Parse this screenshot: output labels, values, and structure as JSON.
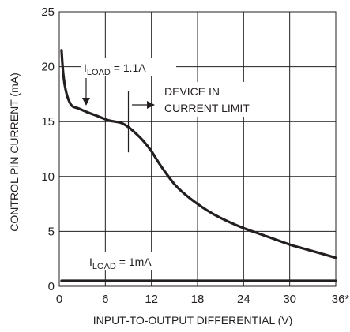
{
  "chart_data": {
    "type": "line",
    "title": "",
    "xlabel": "INPUT-TO-OUTPUT DIFFERENTIAL (V)",
    "ylabel": "CONTROL PIN CURRENT (mA)",
    "xlim": [
      0,
      36
    ],
    "ylim": [
      0,
      25
    ],
    "x_ticks": [
      0,
      6,
      12,
      18,
      24,
      30,
      36
    ],
    "x_tick_labels": [
      "0",
      "6",
      "12",
      "18",
      "24",
      "30",
      "36*"
    ],
    "y_ticks": [
      0,
      5,
      10,
      15,
      20,
      25
    ],
    "y_tick_labels": [
      "0",
      "5",
      "10",
      "15",
      "20",
      "25"
    ],
    "grid": true,
    "line_color": "#231f20",
    "series": [
      {
        "name": "ILOAD = 1.1A",
        "x": [
          0.3,
          0.5,
          0.8,
          1.2,
          1.7,
          2.5,
          3.5,
          5,
          6.5,
          8,
          9,
          10,
          11,
          12,
          13,
          14,
          15,
          16,
          18,
          20,
          22,
          24,
          26,
          28,
          30,
          32,
          34,
          36
        ],
        "y": [
          21.5,
          19.5,
          18,
          17,
          16.4,
          16.2,
          15.9,
          15.5,
          15.1,
          14.9,
          14.5,
          13.9,
          13.2,
          12.3,
          11.2,
          10.2,
          9.3,
          8.6,
          7.5,
          6.6,
          5.9,
          5.3,
          4.8,
          4.3,
          3.8,
          3.4,
          3.0,
          2.6
        ]
      },
      {
        "name": "ILOAD = 1mA",
        "x": [
          0.3,
          36
        ],
        "y": [
          0.5,
          0.5
        ]
      }
    ],
    "annotations": {
      "load_high": {
        "main": "I",
        "sub": "LOAD",
        "rest": " = 1.1A"
      },
      "load_low": {
        "main": "I",
        "sub": "LOAD",
        "rest": " = 1mA"
      },
      "limit_line1": "DEVICE IN",
      "limit_line2": "CURRENT LIMIT",
      "limit_marker_x": 9
    }
  }
}
